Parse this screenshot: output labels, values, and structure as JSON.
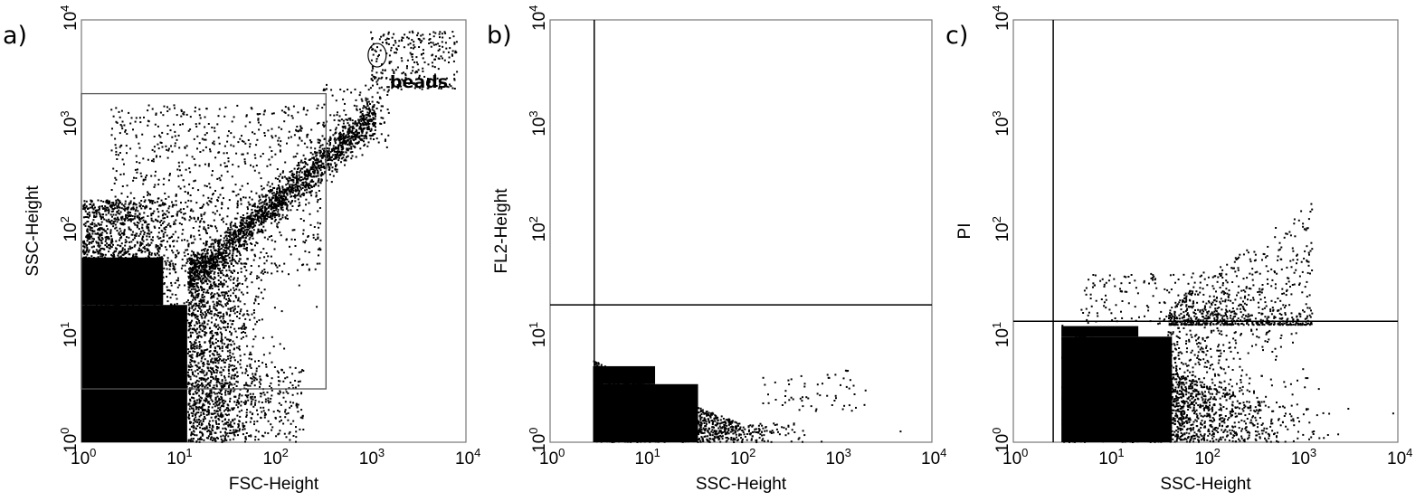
{
  "chart_data": [
    {
      "type": "scatter",
      "panel_label": "a)",
      "xlabel": "FSC-Height",
      "ylabel": "SSC-Height",
      "xscale": "log",
      "yscale": "log",
      "xlim": [
        1,
        10000
      ],
      "ylim": [
        1,
        10000
      ],
      "ticks": [
        "0",
        "1",
        "2",
        "3",
        "4"
      ],
      "gate": {
        "shape": "rectangle",
        "x": [
          1,
          350
        ],
        "y": [
          3.2,
          2000
        ]
      },
      "annotations": [
        {
          "text": "beads",
          "x": 1300,
          "y": 3000
        }
      ],
      "clusters": [
        {
          "x": [
            1,
            20
          ],
          "y": [
            1,
            200
          ],
          "density": "very high"
        },
        {
          "x": [
            20,
            1200
          ],
          "y": [
            20,
            1500
          ],
          "density": "diagonal band"
        },
        {
          "x": [
            1200,
            8000
          ],
          "y": [
            2500,
            8000
          ],
          "density": "beads"
        }
      ]
    },
    {
      "type": "scatter",
      "panel_label": "b)",
      "xlabel": "SSC-Height",
      "ylabel": "FL2-Height",
      "xscale": "log",
      "yscale": "log",
      "xlim": [
        1,
        10000
      ],
      "ylim": [
        1,
        10000
      ],
      "ticks": [
        "0",
        "1",
        "2",
        "3",
        "4"
      ],
      "quadrant": {
        "x": 2.9,
        "y": 20
      },
      "clusters": [
        {
          "x": [
            3,
            2000
          ],
          "y": [
            1,
            10
          ],
          "density": "very high"
        }
      ]
    },
    {
      "type": "scatter",
      "panel_label": "c)",
      "xlabel": "SSC-Height",
      "ylabel": "PI",
      "xscale": "log",
      "yscale": "log",
      "xlim": [
        1,
        10000
      ],
      "ylim": [
        1,
        10000
      ],
      "ticks": [
        "0",
        "1",
        "2",
        "3",
        "4"
      ],
      "quadrant": {
        "x": 2.6,
        "y": 14
      },
      "clusters": [
        {
          "x": [
            3,
            2000
          ],
          "y": [
            1,
            13
          ],
          "density": "very high"
        },
        {
          "x": [
            50,
            2000
          ],
          "y": [
            13,
            200
          ],
          "density": "sparse"
        }
      ]
    }
  ]
}
